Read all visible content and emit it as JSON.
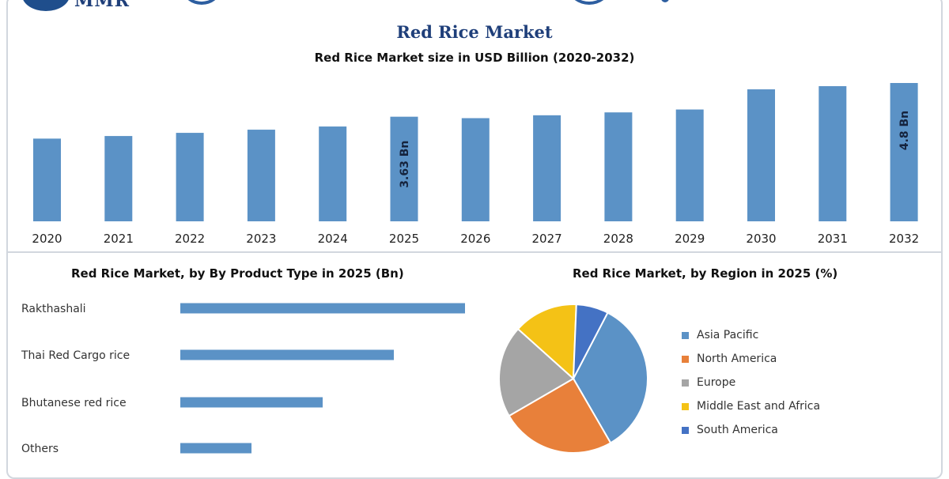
{
  "header": {
    "logo_text": "MMR",
    "title": "Red Rice Market"
  },
  "chart_data": [
    {
      "type": "bar",
      "title": "Red Rice Market size in USD Billion (2020-2032)",
      "categories": [
        "2020",
        "2021",
        "2022",
        "2023",
        "2024",
        "2025",
        "2026",
        "2027",
        "2028",
        "2029",
        "2030",
        "2031",
        "2032"
      ],
      "values": [
        2.87,
        2.96,
        3.07,
        3.18,
        3.29,
        3.63,
        3.58,
        3.68,
        3.78,
        3.88,
        4.58,
        4.69,
        4.8
      ],
      "data_labels": [
        {
          "category": "2025",
          "text": "3.63 Bn"
        },
        {
          "category": "2032",
          "text": "4.8 Bn"
        }
      ],
      "color": "#5b92c6",
      "ylim": [
        0,
        4.8
      ],
      "grid": false
    },
    {
      "type": "bar",
      "orientation": "horizontal",
      "title": "Red Rice Market, by By Product Type in 2025 (Bn)",
      "categories": [
        "Rakthashali",
        "Thai Red Cargo rice",
        "Bhutanese red rice",
        "Others"
      ],
      "values": [
        1.4,
        1.05,
        0.7,
        0.35
      ],
      "color": "#5b92c6",
      "grid": false
    },
    {
      "type": "pie",
      "title": "Red Rice Market, by Region in 2025 (%)",
      "labels": [
        "Asia Pacific",
        "North America",
        "Europe",
        "Middle East and Africa",
        "South America"
      ],
      "values": [
        34,
        25,
        20,
        14,
        7
      ],
      "colors": [
        "#5b92c6",
        "#e8803a",
        "#a5a5a5",
        "#f4c216",
        "#4472c4"
      ],
      "legend_position": "right"
    }
  ]
}
